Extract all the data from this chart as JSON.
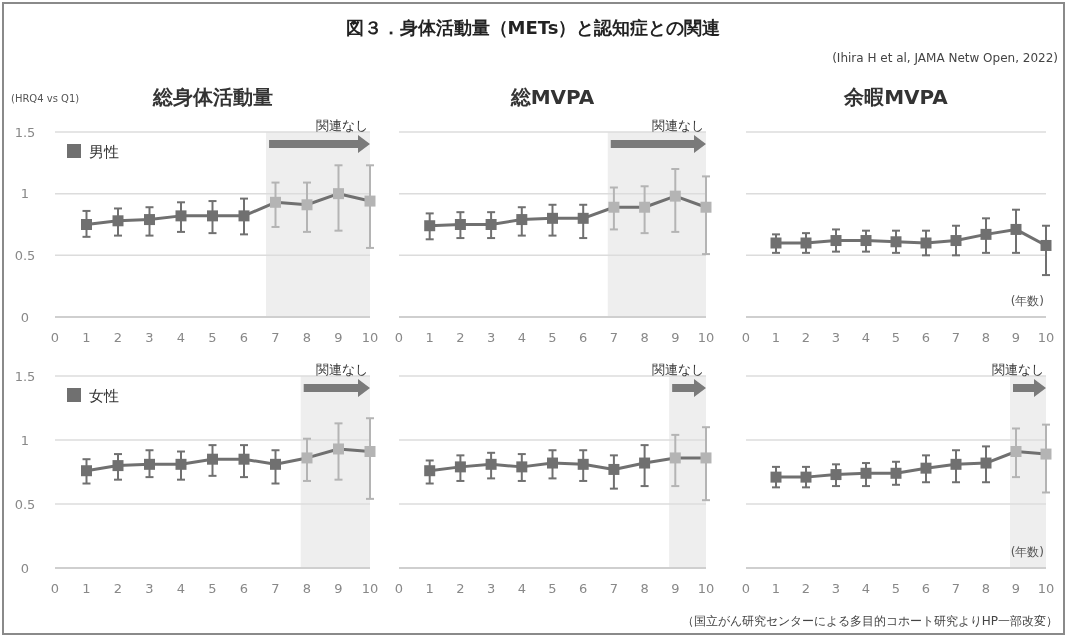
{
  "chart_data": [
    {
      "type": "other",
      "title": "図３．身体活動量（METs）と認知症との関連",
      "annotations": [
        "(Ihira H et al, JAMA Netw Open, 2022)",
        "（国立がん研究センターによる多目的コホート研究よりHP一部改変）"
      ]
    },
    {
      "type": "line",
      "title": "総身体活動量",
      "ylabel": "(HRQ4 vs Q1)",
      "x": [
        1,
        2,
        3,
        4,
        5,
        6,
        7,
        8,
        9,
        10
      ],
      "xlim": [
        0,
        10
      ],
      "xticks": [
        0,
        1,
        2,
        3,
        4,
        5,
        6,
        7,
        8,
        9,
        10
      ],
      "ylim": [
        0,
        1.5
      ],
      "yticks": [
        0,
        0.5,
        1,
        1.5
      ],
      "grid": "y",
      "legend": "top left",
      "marker": "square",
      "bands": [
        {
          "axis": "x",
          "from": 6.7,
          "to": 10,
          "label": "関連なし",
          "color": "#eeeeee"
        }
      ],
      "series": [
        {
          "name": "男性",
          "color": "#707070",
          "colors": [
            "#707070",
            "#707070",
            "#707070",
            "#707070",
            "#707070",
            "#707070",
            "#b4b4b4",
            "#b4b4b4",
            "#b4b4b4",
            "#b4b4b4"
          ],
          "values": [
            0.75,
            0.78,
            0.79,
            0.82,
            0.82,
            0.82,
            0.93,
            0.91,
            1.0,
            0.94
          ],
          "errors": [
            [
              0.65,
              0.86
            ],
            [
              0.66,
              0.88
            ],
            [
              0.66,
              0.89
            ],
            [
              0.69,
              0.93
            ],
            [
              0.68,
              0.94
            ],
            [
              0.67,
              0.96
            ],
            [
              0.73,
              1.09
            ],
            [
              0.69,
              1.09
            ],
            [
              0.7,
              1.23
            ],
            [
              0.56,
              1.23
            ]
          ]
        }
      ]
    },
    {
      "type": "line",
      "title": "総MVPA",
      "x": [
        1,
        2,
        3,
        4,
        5,
        6,
        7,
        8,
        9,
        10
      ],
      "xlim": [
        0,
        10
      ],
      "xticks": [
        0,
        1,
        2,
        3,
        4,
        5,
        6,
        7,
        8,
        9,
        10
      ],
      "ylim": [
        0,
        1.5
      ],
      "yticks": [
        0,
        0.5,
        1,
        1.5
      ],
      "tick_labels": "x",
      "grid": "y",
      "marker": "square",
      "bands": [
        {
          "axis": "x",
          "from": 6.8,
          "to": 10,
          "label": "関連なし",
          "color": "#eeeeee"
        }
      ],
      "series": [
        {
          "color": "#707070",
          "colors": [
            "#707070",
            "#707070",
            "#707070",
            "#707070",
            "#707070",
            "#707070",
            "#b4b4b4",
            "#b4b4b4",
            "#b4b4b4",
            "#b4b4b4"
          ],
          "values": [
            0.74,
            0.75,
            0.75,
            0.79,
            0.8,
            0.8,
            0.89,
            0.89,
            0.98,
            0.89
          ],
          "errors": [
            [
              0.63,
              0.84
            ],
            [
              0.64,
              0.85
            ],
            [
              0.64,
              0.85
            ],
            [
              0.66,
              0.89
            ],
            [
              0.66,
              0.91
            ],
            [
              0.64,
              0.91
            ],
            [
              0.71,
              1.05
            ],
            [
              0.68,
              1.06
            ],
            [
              0.69,
              1.2
            ],
            [
              0.51,
              1.14
            ]
          ]
        }
      ]
    },
    {
      "type": "line",
      "title": "余暇MVPA",
      "xlabel": "(年数)",
      "x": [
        1,
        2,
        3,
        4,
        5,
        6,
        7,
        8,
        9,
        10
      ],
      "xlim": [
        0,
        10
      ],
      "xticks": [
        0,
        1,
        2,
        3,
        4,
        5,
        6,
        7,
        8,
        9,
        10
      ],
      "ylim": [
        0,
        1.5
      ],
      "yticks": [
        0,
        0.5,
        1,
        1.5
      ],
      "tick_labels": "x",
      "grid": "y",
      "marker": "square",
      "series": [
        {
          "color": "#707070",
          "values": [
            0.6,
            0.6,
            0.62,
            0.62,
            0.61,
            0.6,
            0.62,
            0.67,
            0.71,
            0.58
          ],
          "errors": [
            [
              0.52,
              0.67
            ],
            [
              0.52,
              0.68
            ],
            [
              0.53,
              0.71
            ],
            [
              0.53,
              0.7
            ],
            [
              0.52,
              0.7
            ],
            [
              0.5,
              0.7
            ],
            [
              0.5,
              0.74
            ],
            [
              0.52,
              0.8
            ],
            [
              0.52,
              0.87
            ],
            [
              0.34,
              0.74
            ]
          ]
        }
      ]
    },
    {
      "type": "line",
      "x": [
        1,
        2,
        3,
        4,
        5,
        6,
        7,
        8,
        9,
        10
      ],
      "xlim": [
        0,
        10
      ],
      "xticks": [
        0,
        1,
        2,
        3,
        4,
        5,
        6,
        7,
        8,
        9,
        10
      ],
      "ylim": [
        0,
        1.5
      ],
      "yticks": [
        0,
        0.5,
        1,
        1.5
      ],
      "grid": "y",
      "legend": "top left",
      "marker": "square",
      "bands": [
        {
          "axis": "x",
          "from": 7.8,
          "to": 10,
          "label": "関連なし",
          "color": "#eeeeee"
        }
      ],
      "series": [
        {
          "name": "女性",
          "color": "#707070",
          "colors": [
            "#707070",
            "#707070",
            "#707070",
            "#707070",
            "#707070",
            "#707070",
            "#707070",
            "#b4b4b4",
            "#b4b4b4",
            "#b4b4b4"
          ],
          "values": [
            0.76,
            0.8,
            0.81,
            0.81,
            0.85,
            0.85,
            0.81,
            0.86,
            0.93,
            0.91
          ],
          "errors": [
            [
              0.66,
              0.85
            ],
            [
              0.69,
              0.89
            ],
            [
              0.71,
              0.92
            ],
            [
              0.69,
              0.91
            ],
            [
              0.72,
              0.96
            ],
            [
              0.71,
              0.96
            ],
            [
              0.66,
              0.92
            ],
            [
              0.68,
              1.01
            ],
            [
              0.69,
              1.13
            ],
            [
              0.54,
              1.17
            ]
          ]
        }
      ]
    },
    {
      "type": "line",
      "x": [
        1,
        2,
        3,
        4,
        5,
        6,
        7,
        8,
        9,
        10
      ],
      "xlim": [
        0,
        10
      ],
      "xticks": [
        0,
        1,
        2,
        3,
        4,
        5,
        6,
        7,
        8,
        9,
        10
      ],
      "ylim": [
        0,
        1.5
      ],
      "yticks": [
        0,
        0.5,
        1,
        1.5
      ],
      "tick_labels": "x",
      "grid": "y",
      "marker": "square",
      "bands": [
        {
          "axis": "x",
          "from": 8.8,
          "to": 10,
          "label": "関連なし",
          "color": "#eeeeee"
        }
      ],
      "series": [
        {
          "color": "#707070",
          "colors": [
            "#707070",
            "#707070",
            "#707070",
            "#707070",
            "#707070",
            "#707070",
            "#707070",
            "#707070",
            "#b4b4b4",
            "#b4b4b4"
          ],
          "values": [
            0.76,
            0.79,
            0.81,
            0.79,
            0.82,
            0.81,
            0.77,
            0.82,
            0.86,
            0.86
          ],
          "errors": [
            [
              0.66,
              0.84
            ],
            [
              0.68,
              0.88
            ],
            [
              0.7,
              0.9
            ],
            [
              0.68,
              0.89
            ],
            [
              0.7,
              0.92
            ],
            [
              0.68,
              0.92
            ],
            [
              0.62,
              0.88
            ],
            [
              0.64,
              0.96
            ],
            [
              0.64,
              1.04
            ],
            [
              0.53,
              1.1
            ]
          ]
        }
      ]
    },
    {
      "type": "line",
      "xlabel": "(年数)",
      "x": [
        1,
        2,
        3,
        4,
        5,
        6,
        7,
        8,
        9,
        10
      ],
      "xlim": [
        0,
        10
      ],
      "xticks": [
        0,
        1,
        2,
        3,
        4,
        5,
        6,
        7,
        8,
        9,
        10
      ],
      "ylim": [
        0,
        1.5
      ],
      "yticks": [
        0,
        0.5,
        1,
        1.5
      ],
      "tick_labels": "x",
      "grid": "y",
      "marker": "square",
      "bands": [
        {
          "axis": "x",
          "from": 8.8,
          "to": 10,
          "label": "関連なし",
          "color": "#eeeeee"
        }
      ],
      "series": [
        {
          "color": "#707070",
          "colors": [
            "#707070",
            "#707070",
            "#707070",
            "#707070",
            "#707070",
            "#707070",
            "#707070",
            "#707070",
            "#b4b4b4",
            "#b4b4b4"
          ],
          "values": [
            0.71,
            0.71,
            0.73,
            0.74,
            0.74,
            0.78,
            0.81,
            0.82,
            0.91,
            0.89
          ],
          "errors": [
            [
              0.63,
              0.79
            ],
            [
              0.63,
              0.79
            ],
            [
              0.64,
              0.81
            ],
            [
              0.64,
              0.82
            ],
            [
              0.65,
              0.83
            ],
            [
              0.67,
              0.88
            ],
            [
              0.67,
              0.92
            ],
            [
              0.67,
              0.95
            ],
            [
              0.71,
              1.09
            ],
            [
              0.59,
              1.12
            ]
          ]
        }
      ]
    }
  ]
}
